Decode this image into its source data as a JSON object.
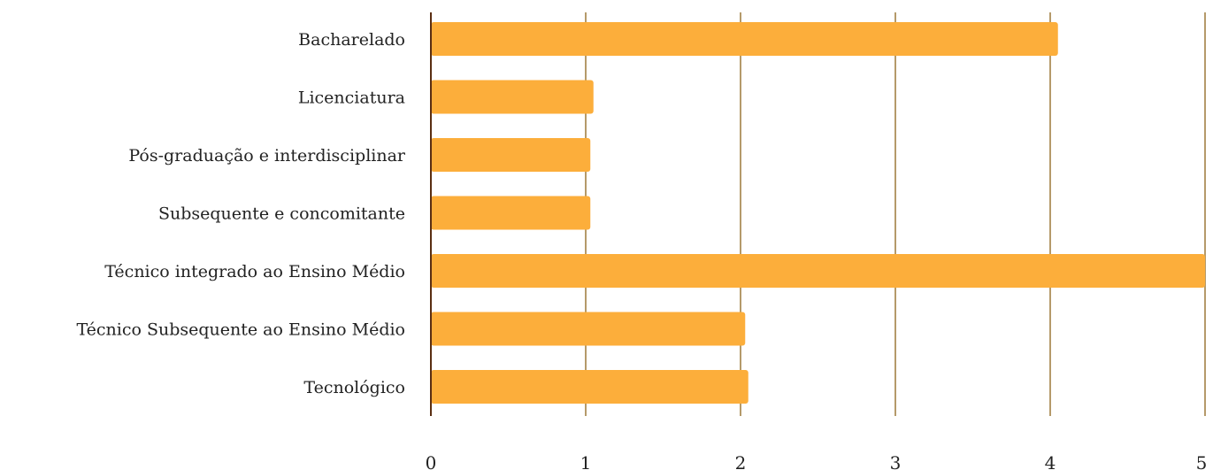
{
  "chart_data": {
    "type": "bar",
    "orientation": "horizontal",
    "categories": [
      "Bacharelado",
      "Licenciatura",
      "Pós-graduação e interdisciplinar",
      "Subsequente e concomitante ",
      "Técnico integrado ao Ensino Médio",
      "Técnico Subsequente ao Ensino Médio",
      "Tecnológico"
    ],
    "values": [
      4.05,
      1.05,
      1.03,
      1.03,
      5,
      2.03,
      2.05
    ],
    "xlim": [
      0,
      5
    ],
    "x_ticks": [
      "0",
      "1",
      "2",
      "3",
      "4",
      "5"
    ],
    "grid": true,
    "legend": "none",
    "colors": {
      "bar": "#fcae3b",
      "grid": "#b59a6a",
      "axis": "#5a2e12",
      "text": "#222222"
    }
  }
}
